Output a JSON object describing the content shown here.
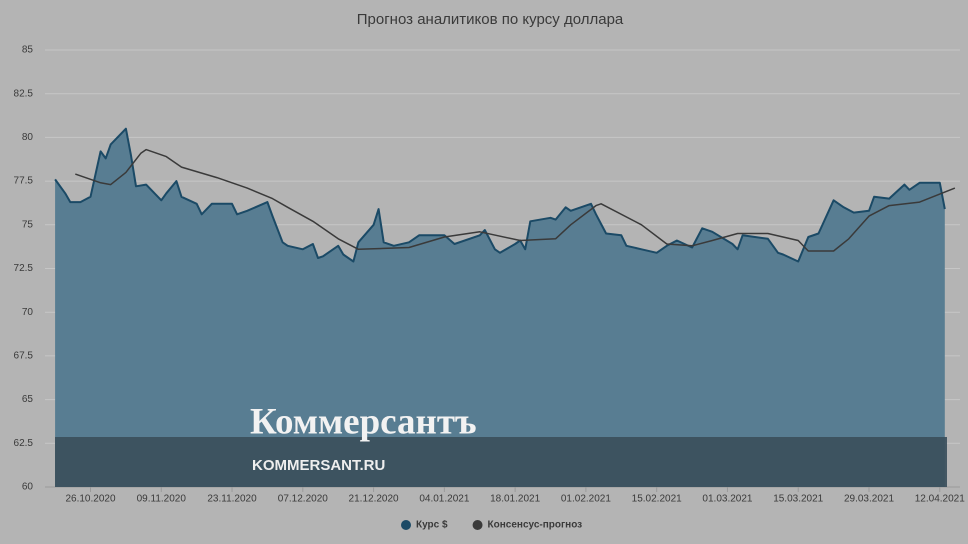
{
  "chart_data": {
    "type": "area-line",
    "title": "Прогноз аналитиков по курсу доллара",
    "xlim": [
      "17.10.2020",
      "16.04.2021"
    ],
    "xticks": [
      "26.10.2020",
      "09.11.2020",
      "23.11.2020",
      "07.12.2020",
      "21.12.2020",
      "04.01.2021",
      "18.01.2021",
      "01.02.2021",
      "15.02.2021",
      "01.03.2021",
      "15.03.2021",
      "29.03.2021",
      "12.04.2021"
    ],
    "ylim": [
      60,
      85
    ],
    "yticks": [
      60,
      62.5,
      65,
      67.5,
      70,
      72.5,
      75,
      77.5,
      80,
      82.5,
      85
    ],
    "grid": true,
    "series": [
      {
        "name": "Курс $",
        "color": "#1b4a66",
        "fill": "#587d92",
        "kind": "area",
        "x": [
          "19.10.2020",
          "21.10.2020",
          "22.10.2020",
          "24.10.2020",
          "26.10.2020",
          "28.10.2020",
          "29.10.2020",
          "30.10.2020",
          "02.11.2020",
          "03.11.2020",
          "04.11.2020",
          "06.11.2020",
          "09.11.2020",
          "10.11.2020",
          "12.11.2020",
          "13.11.2020",
          "16.11.2020",
          "17.11.2020",
          "19.11.2020",
          "23.11.2020",
          "24.11.2020",
          "26.11.2020",
          "30.11.2020",
          "01.12.2020",
          "03.12.2020",
          "04.12.2020",
          "07.12.2020",
          "09.12.2020",
          "10.12.2020",
          "11.12.2020",
          "14.12.2020",
          "15.12.2020",
          "17.12.2020",
          "18.12.2020",
          "21.12.2020",
          "22.12.2020",
          "23.12.2020",
          "25.12.2020",
          "28.12.2020",
          "30.12.2020",
          "04.01.2021",
          "06.01.2021",
          "11.01.2021",
          "12.01.2021",
          "14.01.2021",
          "15.01.2021",
          "18.01.2021",
          "19.01.2021",
          "20.01.2021",
          "21.01.2021",
          "25.01.2021",
          "26.01.2021",
          "28.01.2021",
          "29.01.2021",
          "02.02.2021",
          "03.02.2021",
          "05.02.2021",
          "08.02.2021",
          "09.02.2021",
          "12.02.2021",
          "15.02.2021",
          "17.02.2021",
          "19.02.2021",
          "22.02.2021",
          "24.02.2021",
          "26.02.2021",
          "02.03.2021",
          "03.03.2021",
          "04.03.2021",
          "09.03.2021",
          "11.03.2021",
          "12.03.2021",
          "15.03.2021",
          "17.03.2021",
          "19.03.2021",
          "22.03.2021",
          "24.03.2021",
          "26.03.2021",
          "29.03.2021",
          "30.03.2021",
          "02.04.2021",
          "05.04.2021",
          "06.04.2021",
          "08.04.2021",
          "12.04.2021",
          "13.04.2021"
        ],
        "values": [
          77.6,
          76.8,
          76.3,
          76.3,
          76.6,
          79.2,
          78.8,
          79.6,
          80.5,
          79.0,
          77.2,
          77.3,
          76.4,
          76.8,
          77.5,
          76.6,
          76.2,
          75.6,
          76.2,
          76.2,
          75.6,
          75.8,
          76.3,
          75.5,
          74.0,
          73.8,
          73.6,
          73.9,
          73.1,
          73.2,
          73.8,
          73.3,
          72.9,
          74.0,
          75.0,
          75.9,
          74.0,
          73.8,
          74.0,
          74.4,
          74.4,
          73.9,
          74.4,
          74.7,
          73.6,
          73.4,
          73.9,
          74.1,
          73.6,
          75.2,
          75.4,
          75.3,
          76.0,
          75.8,
          76.2,
          75.6,
          74.5,
          74.4,
          73.8,
          73.6,
          73.4,
          73.8,
          74.1,
          73.7,
          74.8,
          74.6,
          73.9,
          73.6,
          74.4,
          74.2,
          73.4,
          73.3,
          72.9,
          74.3,
          74.5,
          76.4,
          76.0,
          75.7,
          75.8,
          76.6,
          76.5,
          77.3,
          77.0,
          77.4,
          77.4,
          75.9
        ]
      },
      {
        "name": "Консенсус-прогноз",
        "color": "#3a3a3a",
        "kind": "line",
        "x": [
          "23.10.2020",
          "28.10.2020",
          "30.10.2020",
          "02.11.2020",
          "05.11.2020",
          "06.11.2020",
          "10.11.2020",
          "13.11.2020",
          "20.11.2020",
          "26.11.2020",
          "01.12.2020",
          "04.12.2020",
          "09.12.2020",
          "14.12.2020",
          "18.12.2020",
          "28.12.2020",
          "04.01.2021",
          "11.01.2021",
          "19.01.2021",
          "26.01.2021",
          "29.01.2021",
          "03.02.2021",
          "04.02.2021",
          "12.02.2021",
          "17.02.2021",
          "22.02.2021",
          "26.02.2021",
          "03.03.2021",
          "09.03.2021",
          "15.03.2021",
          "17.03.2021",
          "22.03.2021",
          "25.03.2021",
          "29.03.2021",
          "02.04.2021",
          "08.04.2021",
          "15.04.2021"
        ],
        "values": [
          77.9,
          77.4,
          77.3,
          78.0,
          79.1,
          79.3,
          78.9,
          78.3,
          77.7,
          77.1,
          76.5,
          76.0,
          75.2,
          74.2,
          73.6,
          73.7,
          74.3,
          74.6,
          74.1,
          74.2,
          75.0,
          76.1,
          76.2,
          75.0,
          73.9,
          73.8,
          74.1,
          74.5,
          74.5,
          74.1,
          73.5,
          73.5,
          74.2,
          75.5,
          76.1,
          76.3,
          77.1
        ]
      }
    ]
  },
  "watermark": {
    "logo": "Коммерсантъ",
    "site": "KOMMERSANT.RU"
  }
}
